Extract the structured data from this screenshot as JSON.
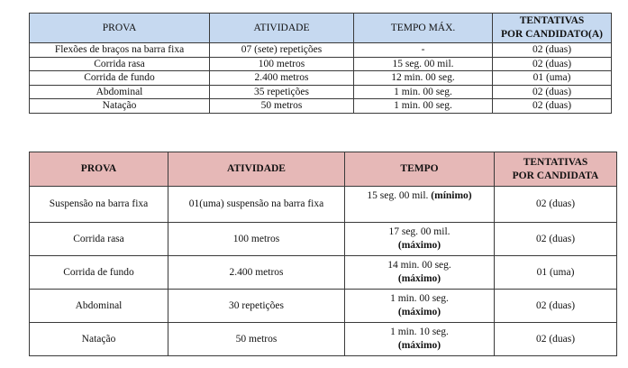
{
  "table_men": {
    "headers": [
      "PROVA",
      "ATIVIDADE",
      "TEMPO MÁX.",
      "TENTATIVAS",
      "POR CANDIDATO(A)"
    ],
    "rows": [
      [
        "Flexões de braços na barra fixa",
        "07 (sete) repetições",
        "-",
        "02 (duas)"
      ],
      [
        "Corrida rasa",
        "100 metros",
        "15 seg. 00 mil.",
        "02 (duas)"
      ],
      [
        "Corrida de fundo",
        "2.400 metros",
        "12 min. 00 seg.",
        "01 (uma)"
      ],
      [
        "Abdominal",
        "35 repetições",
        "1 min. 00 seg.",
        "02 (duas)"
      ],
      [
        "Natação",
        "50 metros",
        "1 min. 00 seg.",
        "02 (duas)"
      ]
    ]
  },
  "table_women": {
    "headers": [
      "PROVA",
      "ATIVIDADE",
      "TEMPO",
      "TENTATIVAS",
      "POR CANDIDATA"
    ],
    "rows": [
      {
        "prova": "Suspensão na barra fixa",
        "atividade": "01(uma) suspensão na barra fixa",
        "tempo": "15 seg. 00 mil.",
        "tempo_qual": "(mínimo)",
        "tentativas": "02 (duas)"
      },
      {
        "prova": "Corrida rasa",
        "atividade": "100 metros",
        "tempo": "17 seg. 00 mil.",
        "tempo_qual": "(máximo)",
        "tentativas": "02 (duas)"
      },
      {
        "prova": "Corrida de fundo",
        "atividade": "2.400 metros",
        "tempo": "14 min. 00 seg.",
        "tempo_qual": "(máximo)",
        "tentativas": "01 (uma)"
      },
      {
        "prova": "Abdominal",
        "atividade": "30 repetições",
        "tempo": "1 min. 00 seg.",
        "tempo_qual": "(máximo)",
        "tentativas": "02 (duas)"
      },
      {
        "prova": "Natação",
        "atividade": "50 metros",
        "tempo": "1 min. 10 seg.",
        "tempo_qual": "(máximo)",
        "tentativas": "02 (duas)"
      }
    ]
  }
}
